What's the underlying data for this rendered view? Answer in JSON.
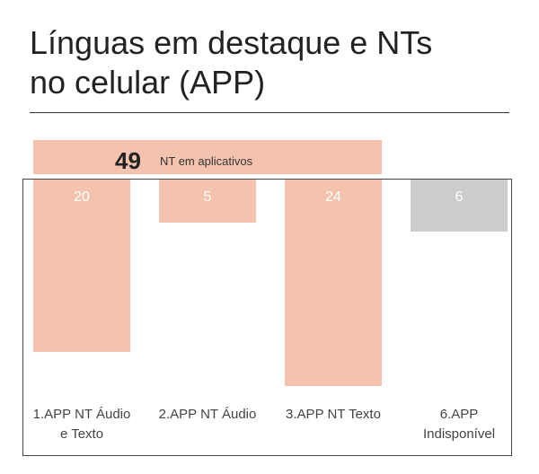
{
  "title": [
    "Línguas em destaque e NTs",
    "no celular (APP)"
  ],
  "total": {
    "value": "49",
    "label": "NT em aplicativos"
  },
  "colors": {
    "bar": "#f4c3ae",
    "bar_unavailable": "#cccccc",
    "label_text": "#ffffff"
  },
  "chart_data": {
    "type": "bar",
    "title": "Línguas em destaque e NTs no celular (APP)",
    "categories": [
      [
        "1.APP NT Áudio",
        "e Texto"
      ],
      [
        "2.APP NT Áudio"
      ],
      [
        "3.APP NT Texto"
      ],
      [
        "6.APP",
        "Indisponível"
      ]
    ],
    "values": [
      20,
      5,
      24,
      6
    ],
    "data_labels": [
      "20",
      "5",
      "24",
      "6"
    ],
    "ylim": [
      0,
      24
    ],
    "grid": false,
    "legend": "none"
  }
}
